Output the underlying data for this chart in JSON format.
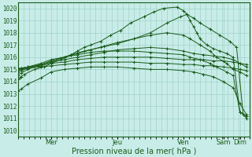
{
  "xlabel": "Pression niveau de la mer( hPa )",
  "bg_color": "#c8ece8",
  "grid_color_major": "#98ccc4",
  "grid_color_minor": "#b8ddd8",
  "line_color": "#1a5c1a",
  "marker": "+",
  "ylim": [
    1009.5,
    1020.5
  ],
  "yticks": [
    1010,
    1011,
    1012,
    1013,
    1014,
    1015,
    1016,
    1017,
    1018,
    1019,
    1020
  ],
  "xlim": [
    0,
    7.0
  ],
  "day_labels": [
    "Mer",
    "Jeu",
    "Ven",
    "Sam",
    "Dim"
  ],
  "day_positions": [
    1.0,
    3.0,
    5.0,
    6.2,
    6.7
  ],
  "lines": [
    {
      "x": [
        0.0,
        0.05,
        0.1,
        0.2,
        0.5,
        0.8,
        1.0,
        1.3,
        1.6,
        1.8,
        2.0,
        2.2,
        2.5,
        2.8,
        3.1,
        3.4,
        3.8,
        4.1,
        4.4,
        4.8,
        5.0,
        5.1,
        5.2,
        5.3,
        5.4,
        5.5,
        5.7,
        5.9,
        6.1,
        6.3,
        6.5,
        6.7,
        6.9
      ],
      "y": [
        1014.2,
        1014.3,
        1014.4,
        1014.6,
        1015.0,
        1015.2,
        1015.5,
        1015.8,
        1016.2,
        1016.5,
        1016.8,
        1017.0,
        1017.3,
        1017.8,
        1018.2,
        1018.8,
        1019.3,
        1019.7,
        1020.0,
        1020.1,
        1019.8,
        1019.5,
        1019.0,
        1018.5,
        1018.0,
        1017.5,
        1017.0,
        1016.7,
        1016.5,
        1016.3,
        1016.0,
        1011.5,
        1011.2
      ]
    },
    {
      "x": [
        0.0,
        0.1,
        0.3,
        0.6,
        1.0,
        1.3,
        1.6,
        2.0,
        2.5,
        3.0,
        3.5,
        4.0,
        4.5,
        4.9,
        5.1,
        5.3,
        5.5,
        5.8,
        6.1,
        6.4,
        6.6,
        6.8,
        6.9
      ],
      "y": [
        1014.5,
        1014.7,
        1015.0,
        1015.3,
        1015.6,
        1015.9,
        1016.2,
        1016.5,
        1016.8,
        1017.1,
        1017.5,
        1018.0,
        1018.8,
        1019.3,
        1019.5,
        1019.2,
        1018.8,
        1018.3,
        1017.8,
        1017.3,
        1016.8,
        1011.3,
        1011.0
      ]
    },
    {
      "x": [
        0.0,
        0.1,
        0.3,
        0.7,
        1.0,
        1.4,
        1.8,
        2.2,
        2.6,
        3.0,
        3.5,
        4.0,
        4.5,
        5.0,
        5.2,
        5.5,
        5.8,
        6.0,
        6.3,
        6.5,
        6.7,
        6.9
      ],
      "y": [
        1014.8,
        1014.9,
        1015.1,
        1015.4,
        1015.7,
        1016.0,
        1016.3,
        1016.6,
        1016.9,
        1017.2,
        1017.5,
        1017.8,
        1018.0,
        1017.8,
        1017.5,
        1017.0,
        1016.5,
        1016.0,
        1015.5,
        1015.0,
        1014.8,
        1014.5
      ]
    },
    {
      "x": [
        0.0,
        0.1,
        0.3,
        0.7,
        1.0,
        1.4,
        1.8,
        2.2,
        2.6,
        3.0,
        3.5,
        4.0,
        4.5,
        5.0,
        5.3,
        5.6,
        5.9,
        6.2,
        6.5,
        6.7,
        6.9
      ],
      "y": [
        1015.0,
        1015.1,
        1015.2,
        1015.4,
        1015.6,
        1015.8,
        1016.0,
        1016.2,
        1016.4,
        1016.6,
        1016.7,
        1016.8,
        1016.7,
        1016.5,
        1016.3,
        1016.2,
        1016.1,
        1016.0,
        1015.8,
        1015.5,
        1015.2
      ]
    },
    {
      "x": [
        0.0,
        0.1,
        0.3,
        0.7,
        1.0,
        1.4,
        1.8,
        2.2,
        2.6,
        3.0,
        3.5,
        4.0,
        4.5,
        5.0,
        5.3,
        5.6,
        5.9,
        6.2,
        6.5,
        6.7,
        6.9
      ],
      "y": [
        1015.1,
        1015.1,
        1015.2,
        1015.3,
        1015.5,
        1015.6,
        1015.8,
        1015.9,
        1016.0,
        1016.0,
        1016.0,
        1016.0,
        1015.9,
        1015.8,
        1015.8,
        1015.8,
        1015.7,
        1015.7,
        1015.6,
        1015.5,
        1015.4
      ]
    },
    {
      "x": [
        0.0,
        0.1,
        0.3,
        0.7,
        1.0,
        1.4,
        1.8,
        2.2,
        2.6,
        3.0,
        3.5,
        4.0,
        4.5,
        5.0,
        5.3,
        5.6,
        5.9,
        6.2,
        6.5,
        6.7,
        6.9
      ],
      "y": [
        1015.0,
        1015.0,
        1015.1,
        1015.2,
        1015.3,
        1015.4,
        1015.5,
        1015.6,
        1015.6,
        1015.6,
        1015.6,
        1015.5,
        1015.5,
        1015.4,
        1015.4,
        1015.3,
        1015.3,
        1015.2,
        1015.1,
        1015.0,
        1014.9
      ]
    },
    {
      "x": [
        0.0,
        0.1,
        0.3,
        0.7,
        1.0,
        1.4,
        1.8,
        2.2,
        2.6,
        3.0,
        3.5,
        4.0,
        4.5,
        5.0,
        5.3,
        5.6,
        5.9,
        6.2,
        6.5,
        6.7,
        6.9
      ],
      "y": [
        1013.2,
        1013.4,
        1013.8,
        1014.3,
        1014.8,
        1015.0,
        1015.1,
        1015.2,
        1015.2,
        1015.2,
        1015.1,
        1015.0,
        1015.0,
        1014.9,
        1014.8,
        1014.6,
        1014.4,
        1014.0,
        1013.5,
        1012.2,
        1011.3
      ]
    },
    {
      "x": [
        0.0,
        0.1,
        0.3,
        0.7,
        1.0,
        1.4,
        1.8,
        2.2,
        2.6,
        3.0,
        3.5,
        4.0,
        4.5,
        5.0,
        5.2,
        5.5,
        5.8,
        6.0,
        6.3,
        6.5,
        6.7,
        6.9
      ],
      "y": [
        1014.9,
        1015.0,
        1015.2,
        1015.5,
        1015.8,
        1016.0,
        1016.2,
        1016.4,
        1016.5,
        1016.5,
        1016.5,
        1016.4,
        1016.3,
        1016.2,
        1016.0,
        1015.8,
        1015.5,
        1015.2,
        1014.8,
        1014.5,
        1011.5,
        1011.2
      ]
    }
  ]
}
